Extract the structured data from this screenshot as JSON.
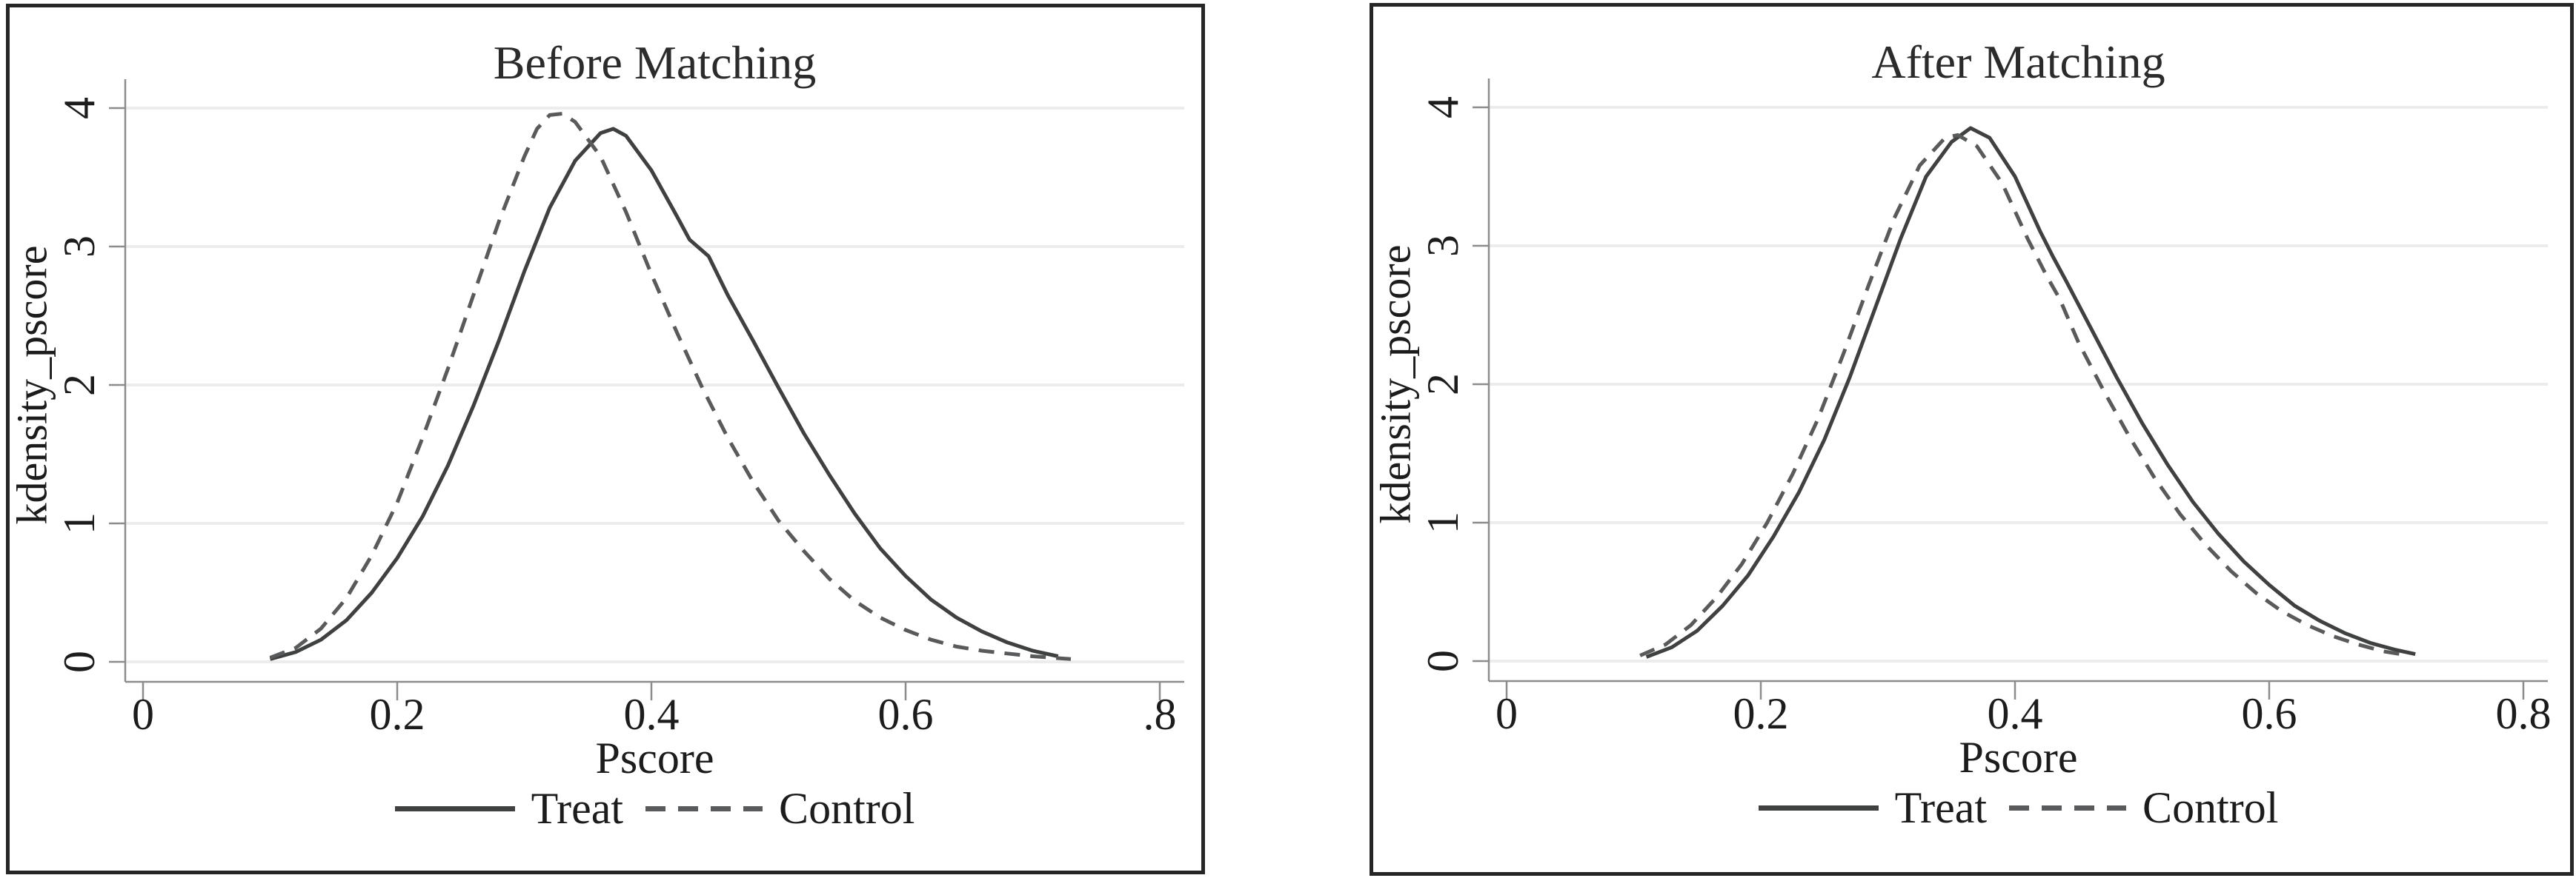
{
  "page": {
    "background": "#ffffff",
    "panel_border_color": "#262626"
  },
  "chart_data": [
    {
      "type": "line",
      "title": "Before Matching",
      "xlabel": "Pscore",
      "ylabel": "kdensity_pscore",
      "xlim": [
        0,
        0.8
      ],
      "ylim": [
        0,
        4
      ],
      "grid": "horizontal",
      "grid_color": "#ececec",
      "axis_color": "#8c8c8c",
      "x_ticks": [
        0,
        0.2,
        0.4,
        0.6,
        0.8
      ],
      "x_tick_labels": [
        "0",
        "0.2",
        "0.4",
        "0.6",
        ".8"
      ],
      "y_ticks": [
        0,
        1,
        2,
        3,
        4
      ],
      "y_tick_labels": [
        "0",
        "1",
        "2",
        "3",
        "4"
      ],
      "legend_position": "bottom",
      "series": [
        {
          "name": "Treat",
          "style": "solid",
          "color": "#3f4040",
          "points": [
            [
              0.1,
              0.02
            ],
            [
              0.12,
              0.07
            ],
            [
              0.14,
              0.16
            ],
            [
              0.16,
              0.3
            ],
            [
              0.18,
              0.5
            ],
            [
              0.2,
              0.75
            ],
            [
              0.22,
              1.05
            ],
            [
              0.24,
              1.42
            ],
            [
              0.26,
              1.85
            ],
            [
              0.28,
              2.32
            ],
            [
              0.3,
              2.82
            ],
            [
              0.32,
              3.28
            ],
            [
              0.34,
              3.62
            ],
            [
              0.36,
              3.82
            ],
            [
              0.37,
              3.85
            ],
            [
              0.38,
              3.8
            ],
            [
              0.4,
              3.55
            ],
            [
              0.42,
              3.22
            ],
            [
              0.43,
              3.05
            ],
            [
              0.445,
              2.93
            ],
            [
              0.46,
              2.65
            ],
            [
              0.48,
              2.32
            ],
            [
              0.5,
              1.98
            ],
            [
              0.52,
              1.65
            ],
            [
              0.54,
              1.35
            ],
            [
              0.56,
              1.07
            ],
            [
              0.58,
              0.82
            ],
            [
              0.6,
              0.62
            ],
            [
              0.62,
              0.45
            ],
            [
              0.64,
              0.32
            ],
            [
              0.66,
              0.22
            ],
            [
              0.68,
              0.14
            ],
            [
              0.7,
              0.08
            ],
            [
              0.72,
              0.04
            ]
          ]
        },
        {
          "name": "Control",
          "style": "dashed",
          "color": "#595a5b",
          "points": [
            [
              0.1,
              0.03
            ],
            [
              0.12,
              0.1
            ],
            [
              0.14,
              0.24
            ],
            [
              0.16,
              0.46
            ],
            [
              0.18,
              0.77
            ],
            [
              0.2,
              1.15
            ],
            [
              0.22,
              1.62
            ],
            [
              0.24,
              2.12
            ],
            [
              0.26,
              2.65
            ],
            [
              0.28,
              3.18
            ],
            [
              0.3,
              3.65
            ],
            [
              0.31,
              3.85
            ],
            [
              0.32,
              3.95
            ],
            [
              0.33,
              3.96
            ],
            [
              0.34,
              3.9
            ],
            [
              0.36,
              3.65
            ],
            [
              0.38,
              3.25
            ],
            [
              0.4,
              2.8
            ],
            [
              0.42,
              2.38
            ],
            [
              0.44,
              1.98
            ],
            [
              0.46,
              1.62
            ],
            [
              0.48,
              1.3
            ],
            [
              0.5,
              1.02
            ],
            [
              0.52,
              0.8
            ],
            [
              0.54,
              0.6
            ],
            [
              0.56,
              0.44
            ],
            [
              0.58,
              0.32
            ],
            [
              0.6,
              0.23
            ],
            [
              0.62,
              0.16
            ],
            [
              0.64,
              0.11
            ],
            [
              0.66,
              0.08
            ],
            [
              0.68,
              0.06
            ],
            [
              0.7,
              0.04
            ],
            [
              0.73,
              0.02
            ]
          ]
        }
      ]
    },
    {
      "type": "line",
      "title": "After Matching",
      "xlabel": "Pscore",
      "ylabel": "kdensity_pscore",
      "xlim": [
        0,
        0.8
      ],
      "ylim": [
        0,
        4
      ],
      "grid": "horizontal",
      "grid_color": "#ececec",
      "axis_color": "#8c8c8c",
      "x_ticks": [
        0,
        0.2,
        0.4,
        0.6,
        0.8
      ],
      "x_tick_labels": [
        "0",
        "0.2",
        "0.4",
        "0.6",
        "0.8"
      ],
      "y_ticks": [
        0,
        1,
        2,
        3,
        4
      ],
      "y_tick_labels": [
        "0",
        "1",
        "2",
        "3",
        "4"
      ],
      "legend_position": "bottom",
      "series": [
        {
          "name": "Treat",
          "style": "solid",
          "color": "#3f4040",
          "points": [
            [
              0.11,
              0.03
            ],
            [
              0.13,
              0.1
            ],
            [
              0.15,
              0.22
            ],
            [
              0.17,
              0.4
            ],
            [
              0.19,
              0.62
            ],
            [
              0.21,
              0.9
            ],
            [
              0.23,
              1.22
            ],
            [
              0.25,
              1.6
            ],
            [
              0.27,
              2.05
            ],
            [
              0.29,
              2.55
            ],
            [
              0.31,
              3.05
            ],
            [
              0.33,
              3.5
            ],
            [
              0.35,
              3.75
            ],
            [
              0.365,
              3.85
            ],
            [
              0.38,
              3.78
            ],
            [
              0.4,
              3.5
            ],
            [
              0.42,
              3.1
            ],
            [
              0.43,
              2.92
            ],
            [
              0.44,
              2.75
            ],
            [
              0.46,
              2.4
            ],
            [
              0.48,
              2.05
            ],
            [
              0.5,
              1.72
            ],
            [
              0.52,
              1.42
            ],
            [
              0.54,
              1.15
            ],
            [
              0.56,
              0.92
            ],
            [
              0.58,
              0.72
            ],
            [
              0.6,
              0.55
            ],
            [
              0.62,
              0.4
            ],
            [
              0.64,
              0.29
            ],
            [
              0.66,
              0.2
            ],
            [
              0.68,
              0.13
            ],
            [
              0.7,
              0.08
            ],
            [
              0.715,
              0.05
            ]
          ]
        },
        {
          "name": "Control",
          "style": "dashed",
          "color": "#595a5b",
          "points": [
            [
              0.105,
              0.04
            ],
            [
              0.125,
              0.12
            ],
            [
              0.145,
              0.26
            ],
            [
              0.165,
              0.46
            ],
            [
              0.185,
              0.7
            ],
            [
              0.205,
              1.0
            ],
            [
              0.225,
              1.35
            ],
            [
              0.245,
              1.75
            ],
            [
              0.265,
              2.22
            ],
            [
              0.285,
              2.72
            ],
            [
              0.305,
              3.2
            ],
            [
              0.325,
              3.58
            ],
            [
              0.345,
              3.78
            ],
            [
              0.355,
              3.8
            ],
            [
              0.37,
              3.72
            ],
            [
              0.39,
              3.45
            ],
            [
              0.41,
              3.05
            ],
            [
              0.425,
              2.78
            ],
            [
              0.435,
              2.62
            ],
            [
              0.45,
              2.3
            ],
            [
              0.47,
              1.95
            ],
            [
              0.49,
              1.62
            ],
            [
              0.51,
              1.32
            ],
            [
              0.53,
              1.06
            ],
            [
              0.55,
              0.84
            ],
            [
              0.57,
              0.65
            ],
            [
              0.59,
              0.49
            ],
            [
              0.61,
              0.36
            ],
            [
              0.63,
              0.26
            ],
            [
              0.65,
              0.18
            ],
            [
              0.67,
              0.12
            ],
            [
              0.69,
              0.07
            ],
            [
              0.71,
              0.04
            ]
          ]
        }
      ]
    }
  ]
}
